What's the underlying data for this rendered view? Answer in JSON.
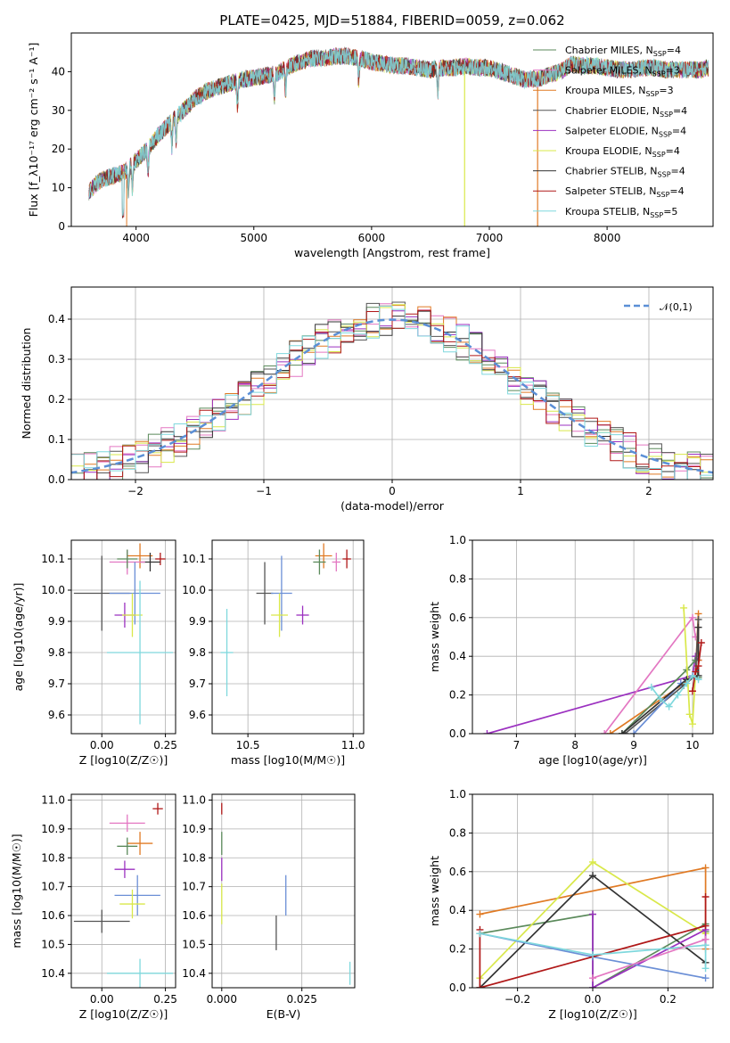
{
  "title": "PLATE=0425, MJD=51884, FIBERID=0059, z=0.062",
  "colors": {
    "Chabrier MILES": "#5b8a5b",
    "Salpeter MILES": "#e377c2",
    "Kroupa MILES": "#e07a24",
    "Chabrier ELODIE": "#555555",
    "Salpeter ELODIE": "#9b30c0",
    "Kroupa ELODIE": "#d9e84a",
    "Chabrier STELIB": "#333333",
    "Salpeter STELIB": "#b01818",
    "Kroupa STELIB": "#7fd8dd",
    "extra": "#6b8fd6"
  },
  "chart_data": [
    {
      "id": "spectrum",
      "type": "line",
      "xlabel": "wavelength [Angstrom, rest frame]",
      "ylabel": "Flux [f_λ10⁻¹⁷ erg cm⁻² s⁻¹ A⁻¹]",
      "xlim": [
        3450,
        8900
      ],
      "ylim": [
        0,
        50
      ],
      "xticks": [
        4000,
        5000,
        6000,
        7000,
        8000
      ],
      "yticks": [
        0,
        10,
        20,
        30,
        40
      ],
      "grid": false,
      "legend_placement": "right",
      "legend": [
        "Chabrier MILES, N_SSP=4",
        "Salpeter MILES, N_SSP=3",
        "Kroupa MILES, N_SSP=3",
        "Chabrier ELODIE, N_SSP=4",
        "Salpeter ELODIE, N_SSP=4",
        "Kroupa ELODIE, N_SSP=4",
        "Chabrier STELIB, N_SSP=4",
        "Salpeter STELIB, N_SSP=4",
        "Kroupa STELIB, N_SSP=5"
      ],
      "envelope": {
        "x": [
          3600,
          3700,
          3800,
          3900,
          4000,
          4100,
          4200,
          4300,
          4400,
          4500,
          4600,
          4700,
          4800,
          4900,
          5000,
          5100,
          5200,
          5300,
          5400,
          5500,
          5600,
          5700,
          5800,
          5900,
          6000,
          6100,
          6200,
          6300,
          6400,
          6500,
          6600,
          6700,
          6800,
          6900,
          7000,
          7100,
          7200,
          7300,
          7400,
          7500,
          7600,
          7700,
          7800,
          7900,
          8000,
          8100,
          8200,
          8300,
          8400,
          8500,
          8600,
          8700,
          8800,
          8860
        ],
        "y": [
          9,
          12,
          13,
          14,
          17,
          20,
          24,
          27,
          30,
          33,
          35,
          36,
          37,
          38,
          38.5,
          39,
          39.5,
          41.5,
          42.5,
          43.5,
          43.5,
          44,
          44,
          43.5,
          42.5,
          42,
          41.5,
          41.5,
          41,
          40.5,
          41,
          41,
          41.5,
          41,
          41,
          40,
          39,
          38,
          38,
          39,
          40,
          42,
          41.5,
          41.5,
          41,
          40.5,
          40.5,
          41,
          41,
          40.5,
          40.5,
          40.5,
          40.5,
          41
        ]
      },
      "absorption_lines": [
        3934,
        3969,
        4102,
        4304,
        4341,
        4861,
        5175,
        5270,
        5890,
        6563
      ]
    },
    {
      "id": "residuals",
      "type": "histogram",
      "xlabel": "(data-model)/error",
      "ylabel": "Normed distribution",
      "xlim": [
        -2.5,
        2.5
      ],
      "ylim": [
        0,
        0.48
      ],
      "xticks": [
        -2,
        -1,
        0,
        1,
        2
      ],
      "yticks": [
        0.0,
        0.1,
        0.2,
        0.3,
        0.4
      ],
      "grid": true,
      "bin_width": 0.1,
      "legend_placement": "top-right",
      "reference": {
        "name": "𝒩(0,1)",
        "mean": 0,
        "sigma": 1,
        "color": "#5b8fd6"
      }
    },
    {
      "id": "age-vs-Z",
      "type": "errorbar",
      "xlabel": "Z [log10(Z/Z☉)]",
      "ylabel": "age  [log10(age/yr)]",
      "xlim": [
        -0.12,
        0.29
      ],
      "ylim": [
        9.54,
        10.16
      ],
      "xticks": [
        0.0,
        0.25
      ],
      "yticks": [
        9.6,
        9.7,
        9.8,
        9.9,
        10.0,
        10.1
      ],
      "grid": true,
      "points": [
        {
          "x": 0.23,
          "y": 10.1,
          "xerr": 0.02,
          "yerr": 0.02,
          "color": "#b01818"
        },
        {
          "x": 0.15,
          "y": 10.11,
          "xerr": 0.05,
          "yerr": 0.04,
          "color": "#e07a24"
        },
        {
          "x": 0.19,
          "y": 10.09,
          "xerr": 0.04,
          "yerr": 0.03,
          "color": "#333333"
        },
        {
          "x": 0.1,
          "y": 10.09,
          "xerr": 0.07,
          "yerr": 0.04,
          "color": "#e377c2"
        },
        {
          "x": 0.1,
          "y": 10.1,
          "xerr": 0.04,
          "yerr": 0.03,
          "color": "#5b8a5b"
        },
        {
          "x": 0.0,
          "y": 9.99,
          "xerr": 0.11,
          "yerr": 0.12,
          "color": "#555555"
        },
        {
          "x": 0.13,
          "y": 9.99,
          "xerr": 0.1,
          "yerr": 0.1,
          "color": "#6b8fd6"
        },
        {
          "x": 0.09,
          "y": 9.92,
          "xerr": 0.04,
          "yerr": 0.04,
          "color": "#9b30c0"
        },
        {
          "x": 0.12,
          "y": 9.92,
          "xerr": 0.04,
          "yerr": 0.07,
          "color": "#d9e84a"
        },
        {
          "x": 0.15,
          "y": 9.8,
          "xerr": 0.13,
          "yerr": 0.23,
          "color": "#7fd8dd"
        }
      ]
    },
    {
      "id": "age-vs-mass",
      "type": "errorbar",
      "xlabel": "mass [log10(M/M☉)]",
      "xlim": [
        10.33,
        11.05
      ],
      "ylim": [
        9.54,
        10.16
      ],
      "xticks": [
        10.5,
        11.0
      ],
      "yticks": [
        9.6,
        9.7,
        9.8,
        9.9,
        10.0,
        10.1
      ],
      "grid": true,
      "points": [
        {
          "x": 10.97,
          "y": 10.1,
          "xerr": 0.02,
          "yerr": 0.03,
          "color": "#b01818"
        },
        {
          "x": 10.86,
          "y": 10.11,
          "xerr": 0.04,
          "yerr": 0.04,
          "color": "#e07a24"
        },
        {
          "x": 10.92,
          "y": 10.09,
          "xerr": 0.02,
          "yerr": 0.03,
          "color": "#e377c2"
        },
        {
          "x": 10.84,
          "y": 10.09,
          "xerr": 0.03,
          "yerr": 0.04,
          "color": "#5b8a5b"
        },
        {
          "x": 10.58,
          "y": 9.99,
          "xerr": 0.04,
          "yerr": 0.1,
          "color": "#555555"
        },
        {
          "x": 10.66,
          "y": 9.99,
          "xerr": 0.05,
          "yerr": 0.12,
          "color": "#6b8fd6"
        },
        {
          "x": 10.76,
          "y": 9.92,
          "xerr": 0.03,
          "yerr": 0.03,
          "color": "#9b30c0"
        },
        {
          "x": 10.65,
          "y": 9.92,
          "xerr": 0.04,
          "yerr": 0.07,
          "color": "#d9e84a"
        },
        {
          "x": 10.4,
          "y": 9.8,
          "xerr": 0.03,
          "yerr": 0.14,
          "color": "#7fd8dd"
        }
      ]
    },
    {
      "id": "weight-vs-age",
      "type": "line",
      "xlabel": "age  [log10(age/yr)]",
      "ylabel": "mass weight",
      "xlim": [
        6.25,
        10.35
      ],
      "ylim": [
        0,
        1
      ],
      "xticks": [
        7,
        8,
        9,
        10
      ],
      "yticks": [
        0.0,
        0.2,
        0.4,
        0.6,
        0.8,
        1.0
      ],
      "grid": true,
      "series": [
        {
          "color": "#9b30c0",
          "x": [
            6.5,
            10.0,
            10.05,
            10.1
          ],
          "y": [
            0.0,
            0.3,
            0.4,
            0.38
          ]
        },
        {
          "color": "#e377c2",
          "x": [
            8.5,
            10.0,
            10.05
          ],
          "y": [
            0.0,
            0.6,
            0.5
          ]
        },
        {
          "color": "#e07a24",
          "x": [
            8.6,
            10.05,
            10.1,
            10.1
          ],
          "y": [
            0.0,
            0.3,
            0.62,
            0.38
          ]
        },
        {
          "color": "#5b8a5b",
          "x": [
            8.8,
            9.9,
            10.05,
            10.1
          ],
          "y": [
            0.0,
            0.33,
            0.38,
            0.29
          ]
        },
        {
          "color": "#555555",
          "x": [
            8.85,
            9.85,
            10.05,
            10.1
          ],
          "y": [
            0.0,
            0.25,
            0.3,
            0.59
          ]
        },
        {
          "color": "#6b8fd6",
          "x": [
            9.0,
            9.8,
            10.05
          ],
          "y": [
            0.0,
            0.26,
            0.3
          ]
        },
        {
          "color": "#d9e84a",
          "x": [
            9.85,
            9.95,
            10.0,
            10.05
          ],
          "y": [
            0.65,
            0.1,
            0.05,
            0.3
          ]
        },
        {
          "color": "#333333",
          "x": [
            8.8,
            9.9,
            10.1,
            10.1
          ],
          "y": [
            0.0,
            0.28,
            0.3,
            0.55
          ]
        },
        {
          "color": "#b01818",
          "x": [
            10.0,
            10.05,
            10.1,
            10.15
          ],
          "y": [
            0.22,
            0.32,
            0.35,
            0.47
          ]
        },
        {
          "color": "#7fd8dd",
          "x": [
            9.3,
            9.45,
            9.6,
            9.75,
            9.9,
            10.0,
            10.1
          ],
          "y": [
            0.24,
            0.18,
            0.14,
            0.2,
            0.26,
            0.3,
            0.28
          ]
        }
      ]
    },
    {
      "id": "mass-vs-Z",
      "type": "errorbar",
      "xlabel": "Z [log10(Z/Z☉)]",
      "ylabel": "mass [log10(M/M☉)]",
      "xlim": [
        -0.12,
        0.29
      ],
      "ylim": [
        10.35,
        11.02
      ],
      "xticks": [
        0.0,
        0.25
      ],
      "yticks": [
        10.4,
        10.5,
        10.6,
        10.7,
        10.8,
        10.9,
        11.0
      ],
      "grid": true,
      "points": [
        {
          "x": 0.22,
          "y": 10.97,
          "xerr": 0.02,
          "yerr": 0.02,
          "color": "#b01818"
        },
        {
          "x": 0.15,
          "y": 10.85,
          "xerr": 0.05,
          "yerr": 0.04,
          "color": "#e07a24"
        },
        {
          "x": 0.1,
          "y": 10.92,
          "xerr": 0.07,
          "yerr": 0.03,
          "color": "#e377c2"
        },
        {
          "x": 0.1,
          "y": 10.84,
          "xerr": 0.04,
          "yerr": 0.03,
          "color": "#5b8a5b"
        },
        {
          "x": 0.09,
          "y": 10.76,
          "xerr": 0.04,
          "yerr": 0.03,
          "color": "#9b30c0"
        },
        {
          "x": 0.14,
          "y": 10.67,
          "xerr": 0.09,
          "yerr": 0.07,
          "color": "#6b8fd6"
        },
        {
          "x": 0.12,
          "y": 10.64,
          "xerr": 0.05,
          "yerr": 0.05,
          "color": "#d9e84a"
        },
        {
          "x": 0.0,
          "y": 10.58,
          "xerr": 0.11,
          "yerr": 0.04,
          "color": "#555555"
        },
        {
          "x": 0.15,
          "y": 10.4,
          "xerr": 0.13,
          "yerr": 0.05,
          "color": "#7fd8dd"
        }
      ]
    },
    {
      "id": "mass-vs-EBV",
      "type": "errorbar",
      "xlabel": "E(B-V)",
      "xlim": [
        -0.003,
        0.0415
      ],
      "ylim": [
        10.35,
        11.02
      ],
      "xticks": [
        0.0,
        0.025
      ],
      "yticks": [
        10.4,
        10.5,
        10.6,
        10.7,
        10.8,
        10.9,
        11.0
      ],
      "grid": true,
      "points": [
        {
          "x": 0.0,
          "y": 10.97,
          "xerr": 0,
          "yerr": 0.02,
          "color": "#b01818"
        },
        {
          "x": 0.0,
          "y": 10.85,
          "xerr": 0,
          "yerr": 0.04,
          "color": "#5b8a5b"
        },
        {
          "x": 0.0,
          "y": 10.76,
          "xerr": 0,
          "yerr": 0.04,
          "color": "#9b30c0"
        },
        {
          "x": 0.0,
          "y": 10.64,
          "xerr": 0,
          "yerr": 0.07,
          "color": "#d9e84a"
        },
        {
          "x": 0.02,
          "y": 10.67,
          "xerr": 0,
          "yerr": 0.07,
          "color": "#6b8fd6"
        },
        {
          "x": 0.017,
          "y": 10.54,
          "xerr": 0,
          "yerr": 0.06,
          "color": "#555555"
        },
        {
          "x": 0.04,
          "y": 10.4,
          "xerr": 0,
          "yerr": 0.04,
          "color": "#7fd8dd"
        }
      ]
    },
    {
      "id": "weight-vs-Z",
      "type": "line",
      "xlabel": "Z [log10(Z/Z☉)]",
      "ylabel": "mass weight",
      "xlim": [
        -0.32,
        0.32
      ],
      "ylim": [
        0,
        1
      ],
      "xticks": [
        -0.2,
        0.0,
        0.2
      ],
      "yticks": [
        0.0,
        0.2,
        0.4,
        0.6,
        0.8,
        1.0
      ],
      "grid": true,
      "series": [
        {
          "color": "#e07a24",
          "x": [
            -0.3,
            0.3,
            0.3
          ],
          "y": [
            0.38,
            0.62,
            0.2
          ]
        },
        {
          "color": "#5b8a5b",
          "x": [
            -0.3,
            0.0,
            0.0,
            0.3,
            0.3
          ],
          "y": [
            0.28,
            0.38,
            0.0,
            0.33,
            0.29
          ]
        },
        {
          "color": "#d9e84a",
          "x": [
            -0.3,
            0.0,
            0.3
          ],
          "y": [
            0.05,
            0.65,
            0.28
          ]
        },
        {
          "color": "#333333",
          "x": [
            -0.3,
            0.0,
            0.3
          ],
          "y": [
            0.0,
            0.58,
            0.13
          ]
        },
        {
          "color": "#9b30c0",
          "x": [
            0.0,
            0.0,
            0.3,
            0.3
          ],
          "y": [
            0.38,
            0.0,
            0.3,
            0.22
          ]
        },
        {
          "color": "#6b8fd6",
          "x": [
            -0.3,
            0.0,
            0.3
          ],
          "y": [
            0.28,
            0.16,
            0.05
          ]
        },
        {
          "color": "#b01818",
          "x": [
            -0.3,
            -0.3,
            0.3,
            0.3
          ],
          "y": [
            0.3,
            0.0,
            0.32,
            0.47
          ]
        },
        {
          "color": "#7fd8dd",
          "x": [
            -0.3,
            0.0,
            0.3,
            0.3
          ],
          "y": [
            0.28,
            0.17,
            0.22,
            0.1
          ]
        },
        {
          "color": "#e377c2",
          "x": [
            0.0,
            0.3
          ],
          "y": [
            0.05,
            0.25
          ]
        }
      ]
    }
  ]
}
